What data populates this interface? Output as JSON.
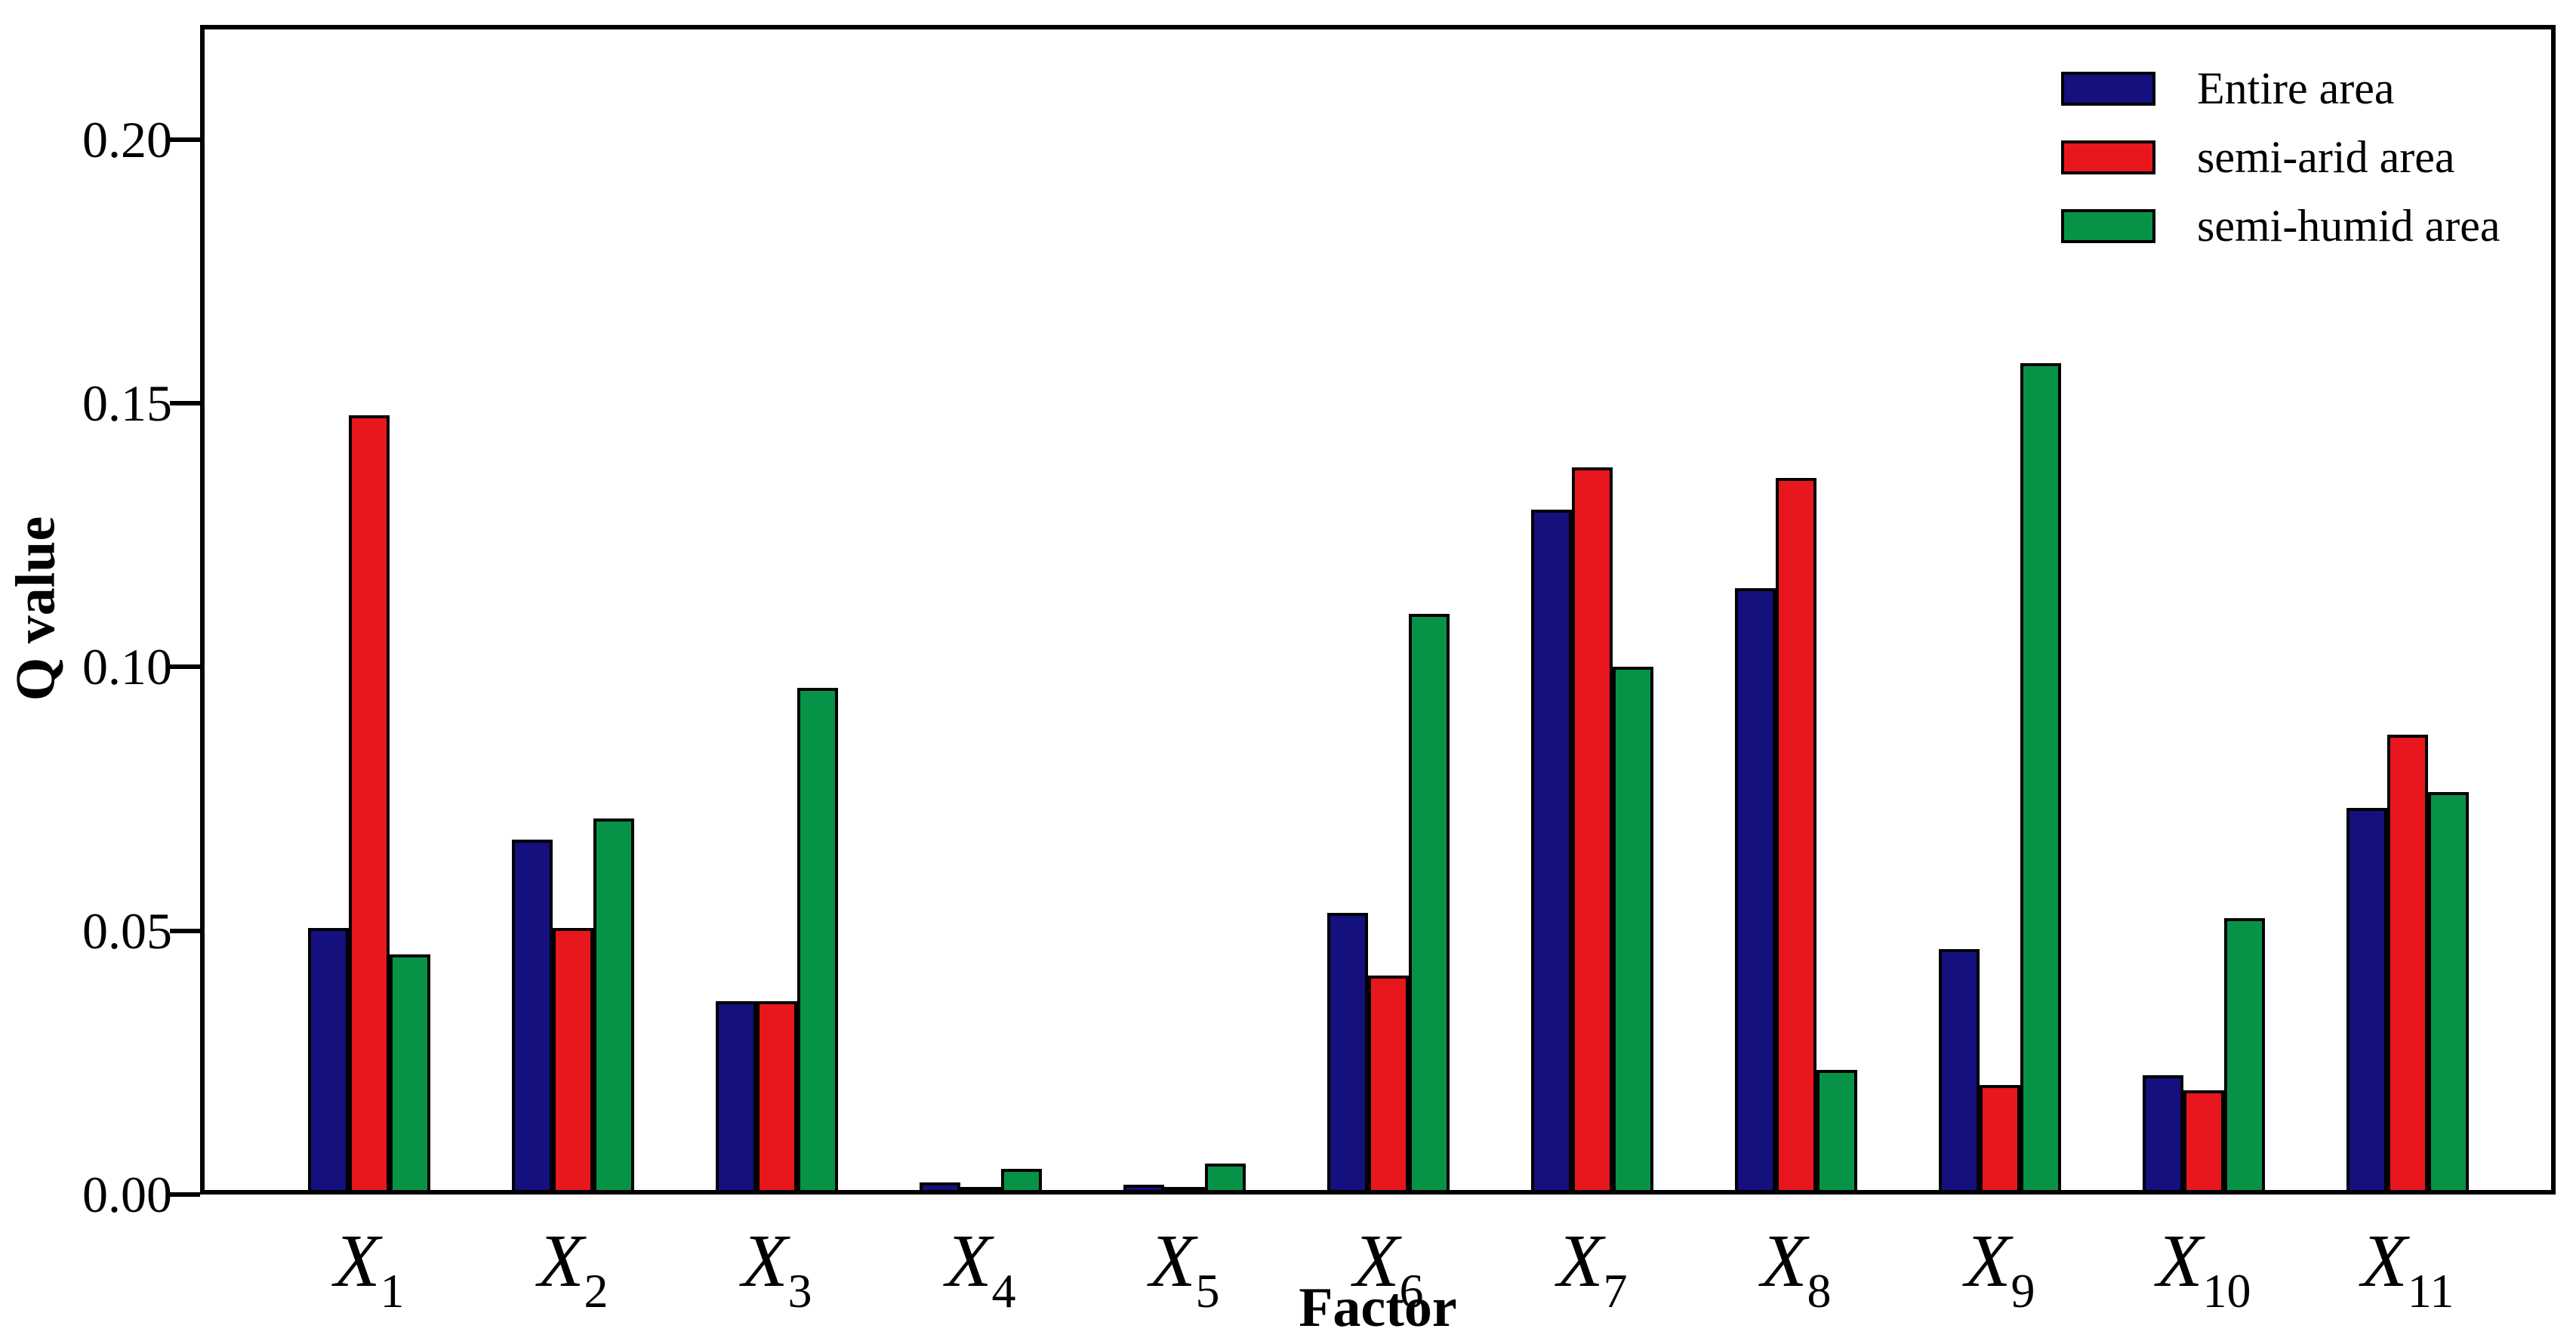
{
  "chart_data": {
    "type": "bar",
    "title": "",
    "xlabel": "Factor",
    "ylabel": "Q value",
    "category_symbol": "X",
    "categories": [
      "1",
      "2",
      "3",
      "4",
      "5",
      "6",
      "7",
      "8",
      "9",
      "10",
      "11"
    ],
    "series": [
      {
        "name": "Entire area",
        "color": "#14107D",
        "values": [
          0.05,
          0.067,
          0.036,
          0.0015,
          0.001,
          0.053,
          0.13,
          0.115,
          0.046,
          0.022,
          0.073
        ]
      },
      {
        "name": "semi-arid area",
        "color": "#E8171E",
        "values": [
          0.148,
          0.05,
          0.036,
          0.0006,
          0.0005,
          0.041,
          0.138,
          0.136,
          0.02,
          0.019,
          0.087
        ]
      },
      {
        "name": "semi-humid area",
        "color": "#079347",
        "values": [
          0.045,
          0.071,
          0.096,
          0.004,
          0.005,
          0.11,
          0.1,
          0.023,
          0.158,
          0.052,
          0.076
        ]
      }
    ],
    "yticks": [
      "0.00",
      "0.05",
      "0.10",
      "0.15",
      "0.20"
    ],
    "ytick_values": [
      0.0,
      0.05,
      0.1,
      0.15,
      0.2
    ],
    "ylim": [
      0,
      0.2217
    ],
    "grid": false,
    "legend_position": "upper right",
    "bar_edge_color": "#000000"
  }
}
